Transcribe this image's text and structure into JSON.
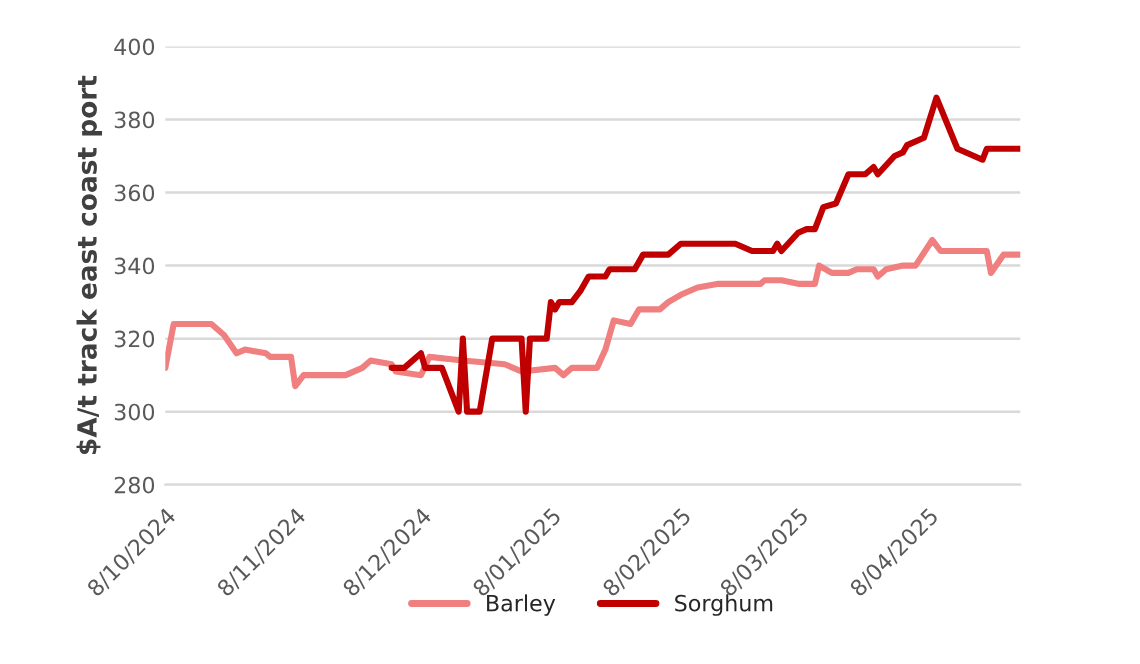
{
  "chart_data": {
    "type": "line",
    "ylabel": "$A/t track east coast port",
    "xlim": [
      "2024-10-08",
      "2025-04-30"
    ],
    "xticks": [
      {
        "value": "2024-10-08",
        "label": "8/10/2024"
      },
      {
        "value": "2024-11-08",
        "label": "8/11/2024"
      },
      {
        "value": "2024-12-08",
        "label": "8/12/2024"
      },
      {
        "value": "2025-01-08",
        "label": "8/01/2025"
      },
      {
        "value": "2025-02-08",
        "label": "8/02/2025"
      },
      {
        "value": "2025-03-08",
        "label": "8/03/2025"
      },
      {
        "value": "2025-04-08",
        "label": "8/04/2025"
      }
    ],
    "ylim": [
      280,
      400
    ],
    "yticks": [
      280,
      300,
      320,
      340,
      360,
      380,
      400
    ],
    "grid": "y",
    "legend": "bottom",
    "marker": "none",
    "line_style": "solid",
    "series": [
      {
        "name": "Barley",
        "color": "#f08080",
        "x": [
          "2024-10-08",
          "2024-10-10",
          "2024-10-19",
          "2024-10-22",
          "2024-10-25",
          "2024-10-27",
          "2024-11-01",
          "2024-11-02",
          "2024-11-07",
          "2024-11-08",
          "2024-11-10",
          "2024-11-20",
          "2024-11-24",
          "2024-11-26",
          "2024-12-01",
          "2024-12-02",
          "2024-12-08",
          "2024-12-10",
          "2024-12-18",
          "2024-12-28",
          "2025-01-01",
          "2025-01-09",
          "2025-01-11",
          "2025-01-13",
          "2025-01-19",
          "2025-01-21",
          "2025-01-23",
          "2025-01-27",
          "2025-01-29",
          "2025-02-03",
          "2025-02-05",
          "2025-02-08",
          "2025-02-12",
          "2025-02-17",
          "2025-02-27",
          "2025-02-28",
          "2025-03-04",
          "2025-03-08",
          "2025-03-12",
          "2025-03-13",
          "2025-03-16",
          "2025-03-20",
          "2025-03-22",
          "2025-03-26",
          "2025-03-27",
          "2025-03-29",
          "2025-04-02",
          "2025-04-05",
          "2025-04-09",
          "2025-04-11",
          "2025-04-22",
          "2025-04-23",
          "2025-04-26",
          "2025-04-30"
        ],
        "values": [
          312,
          324,
          324,
          321,
          316,
          317,
          316,
          315,
          315,
          307,
          310,
          310,
          312,
          314,
          313,
          311,
          310,
          315,
          314,
          313,
          311,
          312,
          310,
          312,
          312,
          317,
          325,
          324,
          328,
          328,
          330,
          332,
          334,
          335,
          335,
          336,
          336,
          335,
          335,
          340,
          338,
          338,
          339,
          339,
          337,
          339,
          340,
          340,
          347,
          344,
          344,
          338,
          343,
          343
        ]
      },
      {
        "name": "Sorghum",
        "color": "#c00000",
        "x": [
          "2024-12-01",
          "2024-12-04",
          "2024-12-08",
          "2024-12-09",
          "2024-12-13",
          "2024-12-17",
          "2024-12-18",
          "2024-12-19",
          "2024-12-22",
          "2024-12-25",
          "2025-01-01",
          "2025-01-02",
          "2025-01-03",
          "2025-01-07",
          "2025-01-08",
          "2025-01-09",
          "2025-01-10",
          "2025-01-13",
          "2025-01-15",
          "2025-01-17",
          "2025-01-21",
          "2025-01-22",
          "2025-01-28",
          "2025-01-30",
          "2025-02-05",
          "2025-02-08",
          "2025-02-21",
          "2025-02-25",
          "2025-03-02",
          "2025-03-03",
          "2025-03-04",
          "2025-03-08",
          "2025-03-10",
          "2025-03-12",
          "2025-03-14",
          "2025-03-17",
          "2025-03-20",
          "2025-03-24",
          "2025-03-26",
          "2025-03-27",
          "2025-03-31",
          "2025-04-02",
          "2025-04-03",
          "2025-04-07",
          "2025-04-10",
          "2025-04-15",
          "2025-04-21",
          "2025-04-22",
          "2025-04-30"
        ],
        "values": [
          312,
          312,
          316,
          312,
          312,
          300,
          320,
          300,
          300,
          320,
          320,
          300,
          320,
          320,
          330,
          328,
          330,
          330,
          333,
          337,
          337,
          339,
          339,
          343,
          343,
          346,
          346,
          344,
          344,
          346,
          344,
          349,
          350,
          350,
          356,
          357,
          365,
          365,
          367,
          365,
          370,
          371,
          373,
          375,
          386,
          372,
          369,
          372,
          372
        ]
      }
    ]
  }
}
